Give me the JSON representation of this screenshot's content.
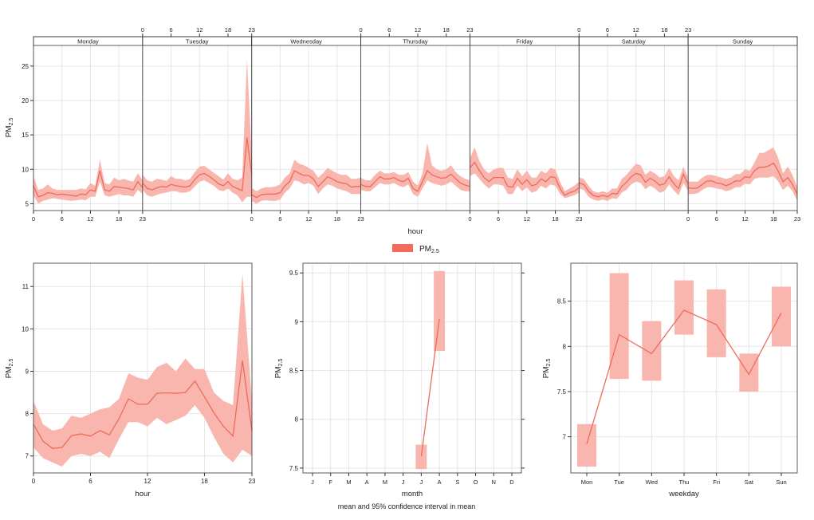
{
  "colors": {
    "line": "#ee6b5b",
    "band": "#f8b6ae",
    "grid": "#e6e6e6",
    "axis": "#333333",
    "strip": "#ffffff"
  },
  "legend": {
    "label": "PM",
    "subscript": "2.5"
  },
  "footer": "mean and 95% confidence interval in mean",
  "chart_data": [
    {
      "id": "weekday-hour",
      "type": "line",
      "xlabel": "hour",
      "ylabel": "PM",
      "ylabel_sub": "2.5",
      "ylim": [
        4,
        28
      ],
      "yticks": [
        5,
        10,
        15,
        20,
        25
      ],
      "xticks": [
        0,
        6,
        12,
        18,
        23
      ],
      "grid": true,
      "panels": [
        {
          "day": "Monday",
          "mean": [
            7.6,
            6.0,
            6.2,
            6.6,
            6.5,
            6.3,
            6.4,
            6.3,
            6.2,
            6.1,
            6.4,
            6.3,
            7.0,
            6.8,
            9.8,
            7.0,
            6.8,
            7.5,
            7.4,
            7.3,
            7.2,
            7.0,
            8.2,
            7.3
          ],
          "lower": [
            6.2,
            5.0,
            5.4,
            5.6,
            5.8,
            5.7,
            5.6,
            5.5,
            5.4,
            5.5,
            5.6,
            5.5,
            6.0,
            6.0,
            8.2,
            6.2,
            6.0,
            6.2,
            6.4,
            6.2,
            6.2,
            6.0,
            7.0,
            6.4
          ],
          "upper": [
            9.0,
            7.0,
            7.2,
            7.8,
            7.2,
            7.0,
            7.0,
            7.0,
            7.0,
            7.0,
            7.2,
            7.1,
            8.0,
            7.6,
            11.4,
            8.0,
            7.8,
            8.8,
            8.4,
            8.6,
            8.4,
            8.2,
            9.4,
            8.4
          ]
        },
        {
          "day": "Tuesday",
          "mean": [
            8.0,
            7.2,
            7.0,
            7.3,
            7.5,
            7.4,
            7.8,
            7.6,
            7.5,
            7.4,
            7.6,
            8.5,
            9.2,
            9.4,
            9.0,
            8.5,
            7.9,
            7.6,
            8.2,
            7.5,
            7.2,
            6.9,
            14.6,
            9.2
          ],
          "lower": [
            7.0,
            6.2,
            6.0,
            6.3,
            6.5,
            6.6,
            6.8,
            6.8,
            6.6,
            6.6,
            6.8,
            7.5,
            8.2,
            8.4,
            8.0,
            7.6,
            7.0,
            6.8,
            7.2,
            6.6,
            6.2,
            5.2,
            6.0,
            6.0
          ],
          "upper": [
            9.2,
            8.4,
            8.2,
            8.6,
            8.5,
            8.3,
            9.0,
            8.6,
            8.6,
            8.4,
            8.6,
            9.6,
            10.4,
            10.5,
            10.0,
            9.5,
            9.0,
            8.5,
            9.4,
            8.6,
            8.4,
            8.8,
            26.0,
            12.0
          ]
        },
        {
          "day": "Wednesday",
          "mean": [
            6.3,
            5.9,
            6.3,
            6.4,
            6.4,
            6.4,
            6.6,
            7.6,
            8.2,
            9.8,
            9.4,
            9.1,
            9.1,
            8.6,
            7.5,
            8.2,
            8.9,
            8.6,
            8.2,
            8.0,
            7.9,
            7.4,
            7.5,
            7.5
          ],
          "lower": [
            5.4,
            5.0,
            5.4,
            5.5,
            5.4,
            5.4,
            5.6,
            6.6,
            7.2,
            8.4,
            8.2,
            7.8,
            8.0,
            7.6,
            6.4,
            7.2,
            7.8,
            7.6,
            7.2,
            7.0,
            6.8,
            6.4,
            6.4,
            6.4
          ],
          "upper": [
            7.3,
            6.8,
            7.2,
            7.4,
            7.4,
            7.5,
            7.8,
            8.8,
            9.4,
            11.4,
            10.8,
            10.6,
            10.2,
            9.8,
            8.8,
            9.4,
            10.2,
            9.8,
            9.4,
            9.2,
            9.2,
            8.6,
            8.6,
            8.8
          ]
        },
        {
          "day": "Thursday",
          "mean": [
            7.8,
            7.5,
            7.5,
            8.2,
            8.9,
            8.6,
            8.6,
            8.8,
            8.4,
            8.2,
            8.7,
            7.2,
            6.8,
            8.2,
            9.8,
            9.2,
            8.9,
            8.7,
            8.8,
            9.3,
            8.6,
            8.0,
            7.7,
            7.5
          ],
          "lower": [
            7.0,
            6.8,
            6.8,
            7.4,
            8.0,
            7.8,
            7.8,
            8.0,
            7.6,
            7.4,
            7.8,
            6.4,
            6.0,
            7.2,
            8.4,
            8.0,
            7.8,
            7.6,
            7.8,
            8.2,
            7.6,
            7.0,
            6.8,
            6.8
          ],
          "upper": [
            8.8,
            8.4,
            8.4,
            9.2,
            9.8,
            9.4,
            9.4,
            9.6,
            9.2,
            9.2,
            9.6,
            8.2,
            7.6,
            9.4,
            13.8,
            10.6,
            10.0,
            9.8,
            10.0,
            10.6,
            9.6,
            9.0,
            8.6,
            8.4
          ]
        },
        {
          "day": "Friday",
          "mean": [
            10.2,
            11.0,
            9.8,
            8.8,
            8.2,
            8.8,
            8.8,
            8.8,
            7.5,
            7.4,
            8.7,
            7.8,
            8.5,
            7.6,
            7.8,
            8.6,
            8.2,
            8.9,
            8.8,
            7.2,
            6.2,
            6.6,
            6.8,
            7.3
          ],
          "lower": [
            9.0,
            9.4,
            8.6,
            7.8,
            7.2,
            7.8,
            7.8,
            7.6,
            6.4,
            6.4,
            7.6,
            6.8,
            7.4,
            6.6,
            6.8,
            7.6,
            7.2,
            7.8,
            7.6,
            6.4,
            5.8,
            6.0,
            6.2,
            6.6
          ],
          "upper": [
            11.6,
            13.2,
            11.2,
            10.0,
            9.4,
            10.0,
            10.2,
            10.2,
            8.8,
            8.6,
            10.0,
            9.0,
            9.8,
            8.8,
            8.8,
            9.8,
            9.4,
            10.2,
            10.0,
            8.2,
            6.8,
            7.2,
            7.6,
            8.2
          ]
        },
        {
          "day": "Saturday",
          "mean": [
            8.0,
            7.8,
            6.8,
            6.2,
            6.0,
            6.2,
            6.0,
            6.5,
            6.4,
            7.5,
            8.1,
            8.9,
            9.4,
            9.2,
            8.1,
            8.7,
            8.3,
            7.7,
            7.9,
            8.9,
            7.9,
            7.2,
            9.3,
            7.8
          ],
          "lower": [
            7.2,
            7.0,
            6.0,
            5.6,
            5.4,
            5.6,
            5.4,
            5.8,
            5.7,
            6.6,
            7.0,
            7.8,
            8.2,
            8.0,
            7.1,
            7.6,
            7.2,
            6.6,
            6.8,
            7.8,
            6.9,
            6.2,
            8.0,
            6.8
          ],
          "upper": [
            8.8,
            8.6,
            7.6,
            6.8,
            6.6,
            6.8,
            6.6,
            7.2,
            7.2,
            8.6,
            9.2,
            10.0,
            10.8,
            10.6,
            9.2,
            9.8,
            9.4,
            8.8,
            9.0,
            10.2,
            9.0,
            8.4,
            10.4,
            8.8
          ]
        },
        {
          "day": "Sunday",
          "mean": [
            7.3,
            7.2,
            7.3,
            7.8,
            8.3,
            8.3,
            8.0,
            7.9,
            7.6,
            7.9,
            8.3,
            8.3,
            8.9,
            8.8,
            9.8,
            10.3,
            10.3,
            10.5,
            10.9,
            9.7,
            8.2,
            8.8,
            7.8,
            6.4
          ],
          "lower": [
            6.4,
            6.4,
            6.5,
            7.0,
            7.4,
            7.4,
            7.2,
            7.1,
            6.8,
            7.0,
            7.4,
            7.4,
            7.9,
            7.8,
            8.6,
            8.8,
            8.8,
            8.8,
            9.0,
            8.2,
            7.0,
            7.6,
            6.8,
            5.4
          ],
          "upper": [
            8.2,
            8.2,
            8.2,
            8.8,
            9.2,
            9.2,
            9.0,
            8.8,
            8.6,
            8.8,
            9.3,
            9.3,
            10.0,
            9.8,
            11.0,
            12.4,
            12.4,
            12.8,
            13.2,
            11.6,
            9.4,
            10.4,
            9.2,
            7.4
          ]
        }
      ]
    },
    {
      "id": "hour",
      "type": "line",
      "xlabel": "hour",
      "ylabel": "PM",
      "ylabel_sub": "2.5",
      "ylim": [
        6.6,
        11.55
      ],
      "yticks": [
        7,
        8,
        9,
        10,
        11
      ],
      "xticks": [
        0,
        6,
        12,
        18,
        23
      ],
      "grid": true,
      "x": [
        0,
        1,
        2,
        3,
        4,
        5,
        6,
        7,
        8,
        9,
        10,
        11,
        12,
        13,
        14,
        15,
        16,
        17,
        18,
        19,
        20,
        21,
        22,
        23
      ],
      "mean": [
        7.75,
        7.35,
        7.18,
        7.2,
        7.48,
        7.52,
        7.47,
        7.6,
        7.5,
        7.88,
        8.35,
        8.22,
        8.22,
        8.48,
        8.49,
        8.48,
        8.5,
        8.77,
        8.4,
        8.02,
        7.7,
        7.47,
        9.25,
        7.6
      ],
      "lower": [
        7.2,
        6.95,
        6.85,
        6.75,
        7.0,
        7.05,
        7.0,
        7.1,
        6.95,
        7.4,
        7.8,
        7.8,
        7.7,
        7.9,
        7.75,
        7.85,
        7.95,
        8.2,
        7.9,
        7.45,
        7.05,
        6.85,
        7.15,
        7.0
      ],
      "upper": [
        8.3,
        7.75,
        7.6,
        7.65,
        7.95,
        7.9,
        8.0,
        8.1,
        8.15,
        8.35,
        8.95,
        8.85,
        8.8,
        9.1,
        9.2,
        9.0,
        9.3,
        9.05,
        9.05,
        8.5,
        8.3,
        8.2,
        11.3,
        8.3
      ]
    },
    {
      "id": "month",
      "type": "line",
      "xlabel": "month",
      "ylabel": "PM",
      "ylabel_sub": "2.5",
      "ylim": [
        7.45,
        9.6
      ],
      "yticks": [
        7.5,
        8.0,
        8.5,
        9.0,
        9.5
      ],
      "categories": [
        "J",
        "F",
        "M",
        "A",
        "M",
        "J",
        "J",
        "A",
        "S",
        "O",
        "N",
        "D"
      ],
      "grid": true,
      "points": [
        {
          "index": 6,
          "mean": 7.62,
          "lower": 7.49,
          "upper": 7.74
        },
        {
          "index": 7,
          "mean": 9.03,
          "lower": 8.7,
          "upper": 9.52
        }
      ]
    },
    {
      "id": "weekday",
      "type": "line",
      "xlabel": "weekday",
      "ylabel": "PM",
      "ylabel_sub": "2.5",
      "ylim": [
        6.6,
        8.92
      ],
      "yticks": [
        7.0,
        7.5,
        8.0,
        8.5
      ],
      "categories": [
        "Mon",
        "Tue",
        "Wed",
        "Thu",
        "Fri",
        "Sat",
        "Sun"
      ],
      "grid": true,
      "mean": [
        6.92,
        8.13,
        7.92,
        8.4,
        8.24,
        7.69,
        8.37
      ],
      "lower": [
        6.67,
        7.64,
        7.62,
        8.13,
        7.88,
        7.5,
        8.0
      ],
      "upper": [
        7.14,
        8.81,
        8.28,
        8.73,
        8.63,
        7.92,
        8.66
      ]
    }
  ]
}
